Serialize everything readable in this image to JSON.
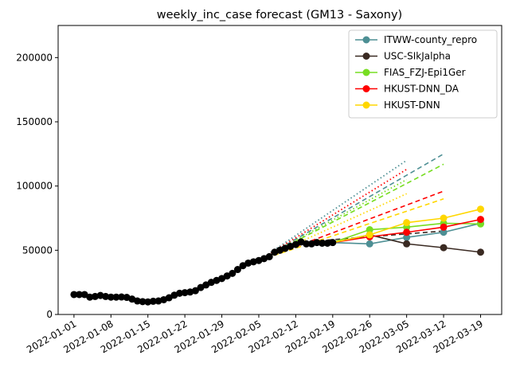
{
  "chart_data": {
    "type": "line",
    "title": "weekly_inc_case forecast (GM13 - Saxony)",
    "xlabel": "",
    "ylabel": "",
    "xlim": [
      "2021-12-29",
      "2022-03-23"
    ],
    "ylim": [
      0,
      225000
    ],
    "x_ticks": [
      "2022-01-01",
      "2022-01-08",
      "2022-01-15",
      "2022-01-22",
      "2022-01-29",
      "2022-02-05",
      "2022-02-12",
      "2022-02-19",
      "2022-02-26",
      "2022-03-05",
      "2022-03-12",
      "2022-03-19"
    ],
    "y_ticks": [
      0,
      50000,
      100000,
      150000,
      200000
    ],
    "grid": false,
    "legend_position": "top-right",
    "observed": {
      "color": "#000000",
      "x": [
        "2022-01-01",
        "2022-01-02",
        "2022-01-03",
        "2022-01-04",
        "2022-01-05",
        "2022-01-06",
        "2022-01-07",
        "2022-01-08",
        "2022-01-09",
        "2022-01-10",
        "2022-01-11",
        "2022-01-12",
        "2022-01-13",
        "2022-01-14",
        "2022-01-15",
        "2022-01-16",
        "2022-01-17",
        "2022-01-18",
        "2022-01-19",
        "2022-01-20",
        "2022-01-21",
        "2022-01-22",
        "2022-01-23",
        "2022-01-24",
        "2022-01-25",
        "2022-01-26",
        "2022-01-27",
        "2022-01-28",
        "2022-01-29",
        "2022-01-30",
        "2022-01-31",
        "2022-02-01",
        "2022-02-02",
        "2022-02-03",
        "2022-02-04",
        "2022-02-05",
        "2022-02-06",
        "2022-02-07",
        "2022-02-08",
        "2022-02-09",
        "2022-02-10",
        "2022-02-11",
        "2022-02-12",
        "2022-02-13",
        "2022-02-14",
        "2022-02-15",
        "2022-02-16",
        "2022-02-17",
        "2022-02-18",
        "2022-02-19"
      ],
      "y": [
        15500,
        15500,
        15500,
        13500,
        14000,
        14800,
        14000,
        13500,
        13500,
        13600,
        13300,
        12000,
        10500,
        10000,
        9800,
        10300,
        10500,
        11500,
        13000,
        15000,
        16500,
        17000,
        17500,
        18500,
        21000,
        23000,
        25000,
        26500,
        28000,
        30000,
        32000,
        35000,
        38000,
        40000,
        41000,
        42000,
        43500,
        45000,
        48500,
        50000,
        51500,
        53000,
        54500,
        56500,
        55000,
        55000,
        56000,
        55500,
        55500,
        56000
      ]
    },
    "series": [
      {
        "name": "ITWW-county_repro",
        "color": "#4d8f94",
        "x": [
          "2022-02-19",
          "2022-02-26",
          "2022-03-05",
          "2022-03-12",
          "2022-03-19"
        ],
        "values": [
          56000,
          55000,
          60000,
          64000,
          71000
        ],
        "upper_95": {
          "x": [
            "2022-02-05",
            "2022-03-12"
          ],
          "values": [
            42000,
            125000
          ]
        },
        "upper_80": {
          "x": [
            "2022-02-05",
            "2022-03-05"
          ],
          "values": [
            42000,
            120000
          ]
        }
      },
      {
        "name": "USC-SIkJalpha",
        "color": "#3a2a22",
        "x": [
          "2022-02-19",
          "2022-02-26",
          "2022-03-05",
          "2022-03-12",
          "2022-03-19"
        ],
        "values": [
          56000,
          62000,
          55000,
          52000,
          48500
        ],
        "upper_95": {
          "x": [
            "2022-02-12",
            "2022-03-12"
          ],
          "values": [
            56000,
            65000
          ]
        }
      },
      {
        "name": "FIAS_FZJ-Epi1Ger",
        "color": "#77dd22",
        "x": [
          "2022-02-19",
          "2022-02-26",
          "2022-03-05",
          "2022-03-12",
          "2022-03-19"
        ],
        "values": [
          56000,
          66000,
          68000,
          71000,
          70500
        ],
        "upper_95": {
          "x": [
            "2022-02-05",
            "2022-03-12"
          ],
          "values": [
            42000,
            117000
          ]
        },
        "upper_80": {
          "x": [
            "2022-02-05",
            "2022-03-05"
          ],
          "values": [
            42000,
            105000
          ]
        }
      },
      {
        "name": "HKUST-DNN_DA",
        "color": "#ff0000",
        "x": [
          "2022-02-19",
          "2022-02-26",
          "2022-03-05",
          "2022-03-12",
          "2022-03-19"
        ],
        "values": [
          56000,
          60500,
          64000,
          68000,
          74000
        ],
        "upper_95": {
          "x": [
            "2022-02-05",
            "2022-03-12"
          ],
          "values": [
            42000,
            96000
          ]
        },
        "upper_80": {
          "x": [
            "2022-02-05",
            "2022-03-05"
          ],
          "values": [
            42000,
            113000
          ]
        }
      },
      {
        "name": "HKUST-DNN",
        "color": "#ffd700",
        "x": [
          "2022-02-19",
          "2022-02-26",
          "2022-03-05",
          "2022-03-12",
          "2022-03-19"
        ],
        "values": [
          56000,
          62000,
          71500,
          75000,
          82000
        ],
        "upper_95": {
          "x": [
            "2022-02-05",
            "2022-03-12"
          ],
          "values": [
            42000,
            90000
          ]
        },
        "upper_80": {
          "x": [
            "2022-02-05",
            "2022-03-05"
          ],
          "values": [
            42000,
            94000
          ]
        }
      }
    ]
  }
}
